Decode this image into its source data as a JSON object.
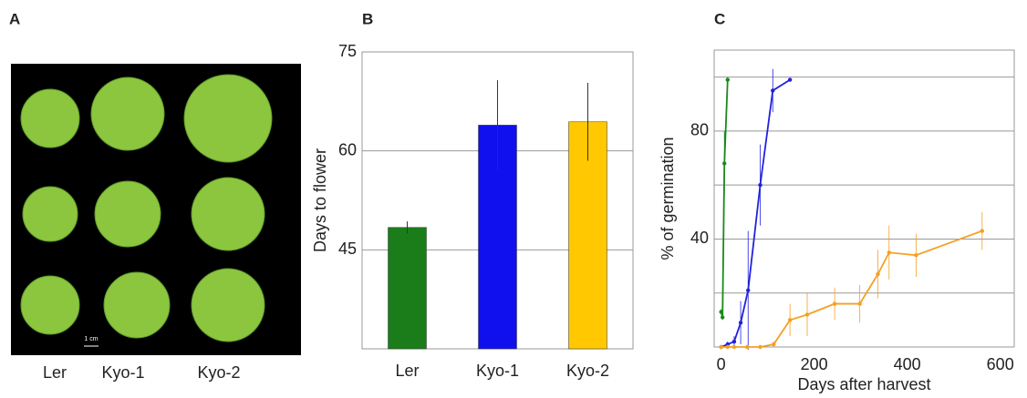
{
  "panel_a": {
    "panel_label": "A",
    "captions": [
      "Ler",
      "Kyo-1",
      "Kyo-2"
    ],
    "scale_label": "1 cm"
  },
  "chart_data": [
    {
      "type": "bar",
      "panel_label": "B",
      "y_label": "Days to flower",
      "categories": [
        "Ler",
        "Kyo-1",
        "Kyo-2"
      ],
      "values": [
        48.4,
        63.9,
        64.4
      ],
      "errors": [
        0.9,
        6.8,
        5.9
      ],
      "colors": [
        "#1a7d1a",
        "#1010ee",
        "#ffc800"
      ],
      "ylim": [
        30,
        75
      ],
      "yticks": [
        45,
        60,
        75
      ],
      "grid": true
    },
    {
      "type": "line",
      "panel_label": "C",
      "x_label": "Days after harvest",
      "y_label": "% of germination",
      "xlim": [
        -15,
        630
      ],
      "xticks": [
        0,
        200,
        400,
        600
      ],
      "ylim": [
        0,
        110
      ],
      "yticks": [
        40,
        80
      ],
      "grid_values": [
        20,
        40,
        60,
        80,
        100
      ],
      "series": [
        {
          "color": "#1a8a1a",
          "x": [
            0,
            3,
            7,
            14
          ],
          "values": [
            13,
            11,
            68,
            99
          ],
          "errors": [
            1,
            1,
            12,
            1
          ]
        },
        {
          "color": "#2222dd",
          "x": [
            0,
            14,
            28,
            42,
            58,
            84,
            111,
            148
          ],
          "values": [
            0,
            1,
            2,
            9,
            21,
            60,
            95,
            99
          ],
          "errors": [
            0,
            1,
            2,
            8,
            22,
            15,
            8,
            0
          ]
        },
        {
          "color": "#f5a020",
          "x": [
            0,
            14,
            28,
            56,
            84,
            113,
            148,
            185,
            244,
            298,
            337,
            361,
            419,
            561
          ],
          "values": [
            0,
            0,
            0,
            0,
            0,
            1,
            10,
            12,
            16,
            16,
            27,
            35,
            34,
            43
          ],
          "errors": [
            0,
            0,
            0,
            0,
            0,
            1,
            6,
            8,
            6,
            7,
            9,
            10,
            8,
            7
          ]
        }
      ]
    }
  ]
}
